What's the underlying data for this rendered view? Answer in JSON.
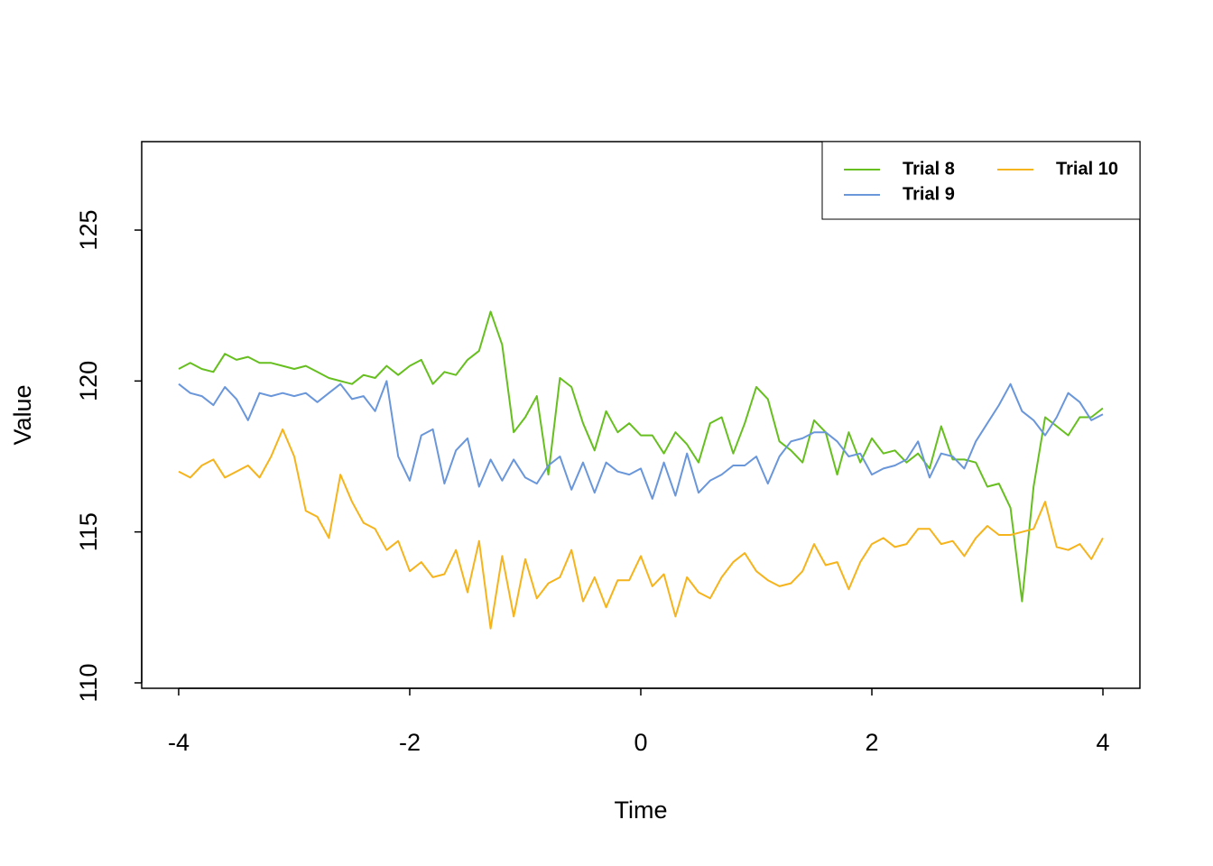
{
  "chart_data": {
    "type": "line",
    "x_label": "Time",
    "y_label": "Value",
    "x": [
      -4,
      -3.9,
      -3.8,
      -3.7,
      -3.6,
      -3.5,
      -3.4,
      -3.3,
      -3.2,
      -3.1,
      -3,
      -2.9,
      -2.8,
      -2.7,
      -2.6,
      -2.5,
      -2.4,
      -2.3,
      -2.2,
      -2.1,
      -2,
      -1.9,
      -1.8,
      -1.7,
      -1.6,
      -1.5,
      -1.4,
      -1.3,
      -1.2,
      -1.1,
      -1,
      -0.9,
      -0.8,
      -0.7,
      -0.6,
      -0.5,
      -0.4,
      -0.3,
      -0.2,
      -0.1,
      0,
      0.1,
      0.2,
      0.3,
      0.4,
      0.5,
      0.6,
      0.7,
      0.8,
      0.9,
      1,
      1.1,
      1.2,
      1.3,
      1.4,
      1.5,
      1.6,
      1.7,
      1.8,
      1.9,
      2,
      2.1,
      2.2,
      2.3,
      2.4,
      2.5,
      2.6,
      2.7,
      2.8,
      2.9,
      3,
      3.1,
      3.2,
      3.3,
      3.4,
      3.5,
      3.6,
      3.7,
      3.8,
      3.9,
      4
    ],
    "series": [
      {
        "name": "Trial 8",
        "color": "#66bf1f",
        "values": [
          120.4,
          120.6,
          120.4,
          120.3,
          120.9,
          120.7,
          120.8,
          120.6,
          120.6,
          120.5,
          120.4,
          120.5,
          120.3,
          120.1,
          120.0,
          119.9,
          120.2,
          120.1,
          120.5,
          120.2,
          120.5,
          120.7,
          119.9,
          120.3,
          120.2,
          120.7,
          121.0,
          122.3,
          121.2,
          118.3,
          118.8,
          119.5,
          116.9,
          120.1,
          119.8,
          118.6,
          117.7,
          119.0,
          118.3,
          118.6,
          118.2,
          118.2,
          117.6,
          118.3,
          117.9,
          117.3,
          118.6,
          118.8,
          117.6,
          118.6,
          119.8,
          119.4,
          118.0,
          117.7,
          117.3,
          118.7,
          118.3,
          116.9,
          118.3,
          117.3,
          118.1,
          117.6,
          117.7,
          117.3,
          117.6,
          117.1,
          118.5,
          117.4,
          117.4,
          117.3,
          116.5,
          116.6,
          115.8,
          112.7,
          116.5,
          118.8,
          118.5,
          118.2,
          118.8,
          118.8,
          119.1
        ]
      },
      {
        "name": "Trial 9",
        "color": "#6a96da",
        "values": [
          119.9,
          119.6,
          119.5,
          119.2,
          119.8,
          119.4,
          118.7,
          119.6,
          119.5,
          119.6,
          119.5,
          119.6,
          119.3,
          119.6,
          119.9,
          119.4,
          119.5,
          119.0,
          120.0,
          117.5,
          116.7,
          118.2,
          118.4,
          116.6,
          117.7,
          118.1,
          116.5,
          117.4,
          116.7,
          117.4,
          116.8,
          116.6,
          117.2,
          117.5,
          116.4,
          117.3,
          116.3,
          117.3,
          117.0,
          116.9,
          117.1,
          116.1,
          117.3,
          116.2,
          117.6,
          116.3,
          116.7,
          116.9,
          117.2,
          117.2,
          117.5,
          116.6,
          117.5,
          118.0,
          118.1,
          118.3,
          118.3,
          118.0,
          117.5,
          117.6,
          116.9,
          117.1,
          117.2,
          117.4,
          118.0,
          116.8,
          117.6,
          117.5,
          117.1,
          118.0,
          118.6,
          119.2,
          119.9,
          119.0,
          118.7,
          118.2,
          118.8,
          119.6,
          119.3,
          118.7,
          118.9
        ]
      },
      {
        "name": "Trial 10",
        "color": "#f5b31c",
        "values": [
          117.0,
          116.8,
          117.2,
          117.4,
          116.8,
          117.0,
          117.2,
          116.8,
          117.5,
          118.4,
          117.5,
          115.7,
          115.5,
          114.8,
          116.9,
          116.0,
          115.3,
          115.1,
          114.4,
          114.7,
          113.7,
          114.0,
          113.5,
          113.6,
          114.4,
          113.0,
          114.7,
          111.8,
          114.2,
          112.2,
          114.1,
          112.8,
          113.3,
          113.5,
          114.4,
          112.7,
          113.5,
          112.5,
          113.4,
          113.4,
          114.2,
          113.2,
          113.6,
          112.2,
          113.5,
          113.0,
          112.8,
          113.5,
          114.0,
          114.3,
          113.7,
          113.4,
          113.2,
          113.3,
          113.7,
          114.6,
          113.9,
          114.0,
          113.1,
          114.0,
          114.6,
          114.8,
          114.5,
          114.6,
          115.1,
          115.1,
          114.6,
          114.7,
          114.2,
          114.8,
          115.2,
          114.9,
          114.9,
          115.0,
          115.1,
          116.0,
          114.5,
          114.4,
          114.6,
          114.1,
          114.8
        ]
      }
    ],
    "xlim": [
      -4.32,
      4.32
    ],
    "ylim": [
      109.82,
      127.93
    ],
    "xticks": [
      -4,
      -2,
      0,
      2,
      4
    ],
    "yticks": [
      110,
      115,
      120,
      125
    ],
    "legend": "topright"
  }
}
